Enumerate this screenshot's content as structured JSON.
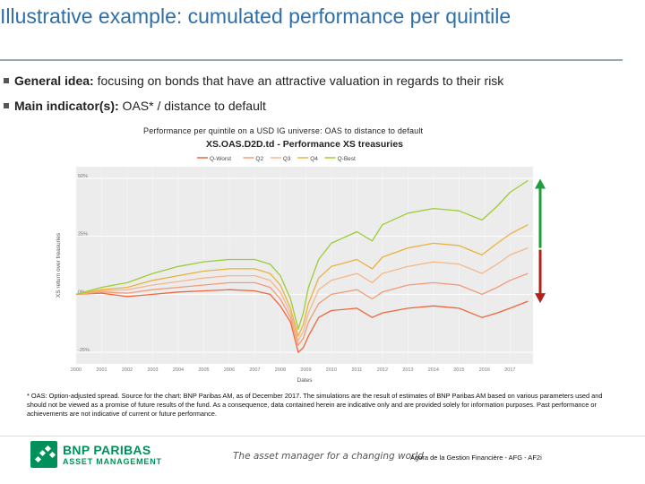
{
  "title": "Illustrative example: cumulated performance per quintile",
  "bullets": [
    {
      "label": "General idea:",
      "text": " focusing on bonds that have an attractive valuation in regards to their risk"
    },
    {
      "label": "Main indicator(s):",
      "text": " OAS* / distance to default"
    }
  ],
  "caption": "Performance per quintile on a USD IG universe: OAS to distance to default",
  "chart_data": {
    "type": "line",
    "title": "XS.OAS.D2D.td - Performance XS treasuries",
    "xlabel": "Dates",
    "ylabel": "XS return over treasuries",
    "x_ticks": [
      "2000",
      "2001",
      "2002",
      "2003",
      "2004",
      "2005",
      "2006",
      "2007",
      "2008",
      "2009",
      "2010",
      "2011",
      "2012",
      "2013",
      "2014",
      "2015",
      "2016",
      "2017"
    ],
    "y_ticks": [
      "50%",
      "25%",
      "0%",
      "-25%"
    ],
    "ylim": [
      -30,
      55
    ],
    "xlim": [
      2000,
      2017.9
    ],
    "legend_position": "top",
    "series": [
      {
        "name": "Q-Worst",
        "color": "#f0663c",
        "x": [
          2000,
          2001,
          2002,
          2003,
          2004,
          2005,
          2006,
          2007,
          2007.6,
          2008,
          2008.4,
          2008.7,
          2008.9,
          2009.1,
          2009.5,
          2010,
          2011,
          2011.6,
          2012,
          2013,
          2014,
          2015,
          2015.9,
          2016.5,
          2017,
          2017.7
        ],
        "y": [
          0,
          0.5,
          -1,
          0,
          1,
          1.5,
          2,
          1.5,
          0,
          -5,
          -12,
          -25,
          -23,
          -18,
          -10,
          -7,
          -6,
          -10,
          -8,
          -6,
          -5,
          -6,
          -10,
          -8,
          -6,
          -3
        ]
      },
      {
        "name": "Q2",
        "color": "#f39a78",
        "x": [
          2000,
          2001,
          2002,
          2003,
          2004,
          2005,
          2006,
          2007,
          2007.6,
          2008,
          2008.4,
          2008.7,
          2008.9,
          2009.1,
          2009.5,
          2010,
          2011,
          2011.6,
          2012,
          2013,
          2014,
          2015,
          2015.9,
          2016.5,
          2017,
          2017.7
        ],
        "y": [
          0,
          1,
          0.5,
          2,
          3,
          4,
          5,
          5,
          3,
          -2,
          -10,
          -22,
          -19,
          -12,
          -4,
          0,
          2,
          -2,
          1,
          4,
          5,
          4,
          0,
          3,
          6,
          9
        ]
      },
      {
        "name": "Q3",
        "color": "#f5b88a",
        "x": [
          2000,
          2001,
          2002,
          2003,
          2004,
          2005,
          2006,
          2007,
          2007.6,
          2008,
          2008.4,
          2008.7,
          2008.9,
          2009.1,
          2009.5,
          2010,
          2011,
          2011.6,
          2012,
          2013,
          2014,
          2015,
          2015.9,
          2016.5,
          2017,
          2017.7
        ],
        "y": [
          0,
          1.5,
          2,
          4,
          5.5,
          7,
          8,
          8,
          6,
          1,
          -8,
          -20,
          -16,
          -8,
          2,
          6,
          9,
          5,
          9,
          12,
          14,
          13,
          9,
          13,
          17,
          20
        ]
      },
      {
        "name": "Q4",
        "color": "#e9b13e",
        "x": [
          2000,
          2001,
          2002,
          2003,
          2004,
          2005,
          2006,
          2007,
          2007.6,
          2008,
          2008.4,
          2008.7,
          2008.9,
          2009.1,
          2009.5,
          2010,
          2011,
          2011.6,
          2012,
          2013,
          2014,
          2015,
          2015.9,
          2016.5,
          2017,
          2017.7
        ],
        "y": [
          0,
          2,
          3,
          6,
          8,
          10,
          11,
          11,
          9,
          4,
          -6,
          -18,
          -13,
          -4,
          7,
          12,
          15,
          11,
          16,
          20,
          22,
          21,
          17,
          22,
          26,
          30
        ]
      },
      {
        "name": "Q-Best",
        "color": "#9ccd32",
        "x": [
          2000,
          2001,
          2002,
          2003,
          2004,
          2005,
          2006,
          2007,
          2007.6,
          2008,
          2008.4,
          2008.7,
          2008.9,
          2009.1,
          2009.5,
          2010,
          2011,
          2011.6,
          2012,
          2013,
          2014,
          2015,
          2015.9,
          2016.5,
          2017,
          2017.7
        ],
        "y": [
          0,
          3,
          5,
          9,
          12,
          14,
          15,
          15,
          13,
          8,
          -2,
          -15,
          -8,
          3,
          15,
          22,
          27,
          23,
          30,
          35,
          37,
          36,
          32,
          38,
          44,
          49
        ]
      }
    ]
  },
  "footnote": "* OAS: Option-adjusted spread. Source for the chart: BNP Paribas AM, as of December 2017. The simulations are the result of estimates of BNP Paribas AM based on various parameters used and should not be viewed as a promise of future results of the fund. As a consequence, data contained herein are indicative only and are provided solely for information purposes. Past performance or achievements are not indicative of current or future performance.",
  "footer": {
    "brand": "BNP PARIBAS",
    "brand_sub": "ASSET MANAGEMENT",
    "tagline": "The asset manager for a changing world",
    "agora": "Agora de la Gestion Financière - AFG - AF2i"
  },
  "colors": {
    "title": "#2f6fa8",
    "up_arrow": "#1e9e3e",
    "down_arrow": "#b2221b",
    "plot_bg": "#ececec"
  }
}
